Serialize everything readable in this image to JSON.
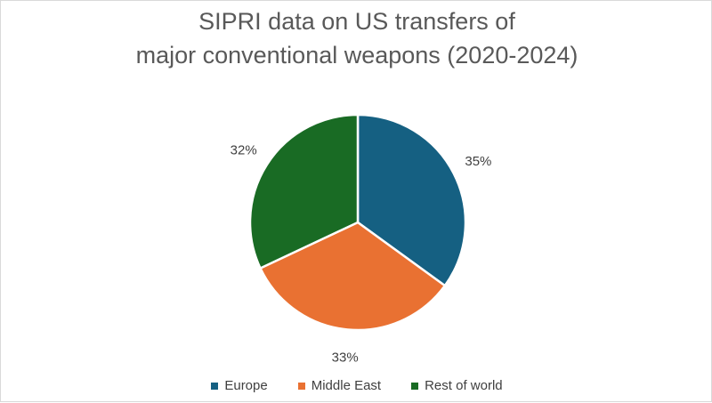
{
  "chart_data": {
    "type": "pie",
    "title_lines": [
      "SIPRI data on US transfers of",
      "major conventional weapons (2020-2024)"
    ],
    "categories": [
      "Europe",
      "Middle East",
      "Rest of world"
    ],
    "values": [
      35,
      33,
      32
    ],
    "value_labels": [
      "35%",
      "33%",
      "32%"
    ],
    "colors": [
      "#156082",
      "#E97132",
      "#196B24"
    ],
    "legend_position": "bottom"
  }
}
